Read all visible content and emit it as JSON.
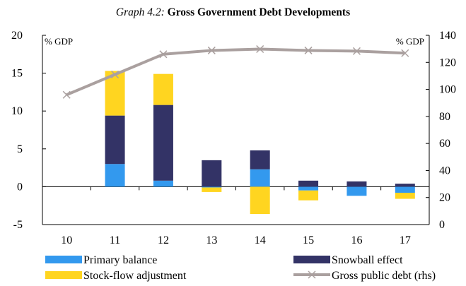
{
  "title": {
    "prefix": "Graph 4.2:",
    "main": "Gross Government Debt Developments"
  },
  "chart_data": {
    "type": "bar",
    "stacked": true,
    "categories": [
      "10",
      "11",
      "12",
      "13",
      "14",
      "15",
      "16",
      "17"
    ],
    "y_left": {
      "unit": "% GDP",
      "lim": [
        -5,
        20
      ],
      "ticks": [
        -5,
        0,
        5,
        10,
        15,
        20
      ],
      "tick_labels": [
        "-5",
        "0",
        "5",
        "10",
        "15",
        "20"
      ]
    },
    "y_right": {
      "unit": "% GDP",
      "lim": [
        0,
        140
      ],
      "ticks": [
        0,
        20,
        40,
        60,
        80,
        100,
        120,
        140
      ],
      "tick_labels": [
        "0",
        "20",
        "40",
        "60",
        "80",
        "100",
        "120",
        "140"
      ]
    },
    "series": [
      {
        "name": "Primary balance",
        "type": "bar",
        "color": "#3399ee",
        "values": [
          null,
          3.0,
          0.8,
          -0.1,
          2.3,
          -0.5,
          -1.2,
          -0.8
        ]
      },
      {
        "name": "Snowball effect",
        "type": "bar",
        "color": "#333366",
        "values": [
          null,
          6.4,
          10.0,
          3.5,
          2.5,
          0.8,
          0.7,
          0.4
        ]
      },
      {
        "name": "Stock-flow adjustment",
        "type": "bar",
        "color": "#ffd520",
        "values": [
          null,
          5.9,
          4.1,
          -0.6,
          -3.6,
          -1.3,
          0.0,
          -0.8
        ]
      },
      {
        "name": "Gross public debt (rhs)",
        "type": "line",
        "axis": "right",
        "color": "#aaa09f",
        "values": [
          96.0,
          111.0,
          126.0,
          128.8,
          129.8,
          128.8,
          128.3,
          126.8
        ]
      }
    ],
    "legend": {
      "position": "bottom"
    },
    "grid": false
  }
}
